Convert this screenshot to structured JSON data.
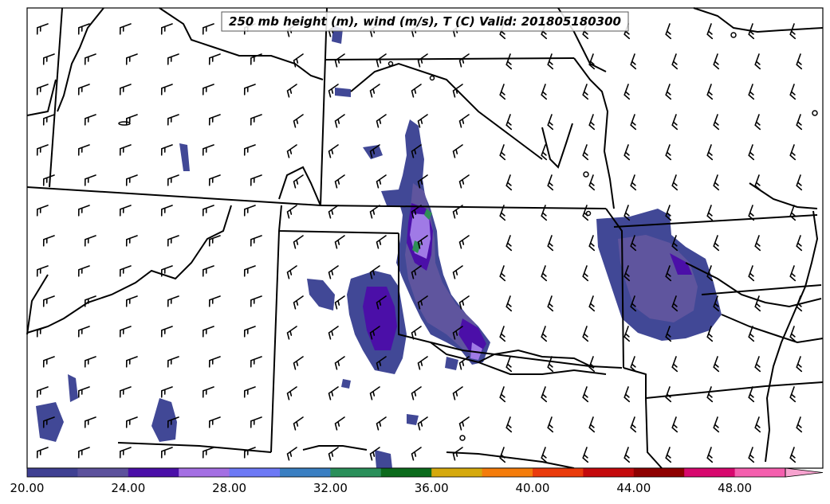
{
  "title": "250 mb height (m), wind (m/s), T (C) Valid: 201805180300",
  "colorbar": {
    "colors": [
      "#3f4092",
      "#5c519c",
      "#4a0fa8",
      "#a46fe3",
      "#6d79f5",
      "#3a7fc2",
      "#2a8f5a",
      "#0c6b1c",
      "#d5a90d",
      "#f47c0b",
      "#ea3b0c",
      "#c4090c",
      "#8e0000",
      "#d7086e",
      "#f45fae",
      "#f7a3cf"
    ],
    "tick_labels": [
      "20.00",
      "24.00",
      "28.00",
      "32.00",
      "36.00",
      "40.00",
      "44.00",
      "48.00"
    ]
  },
  "precip_colors": {
    "base": "#414896",
    "mid": "#5f559e",
    "core": "#4b0fa8",
    "light": "#a07ae6",
    "bright": "#8a86f0",
    "green": "#2e8f56"
  }
}
